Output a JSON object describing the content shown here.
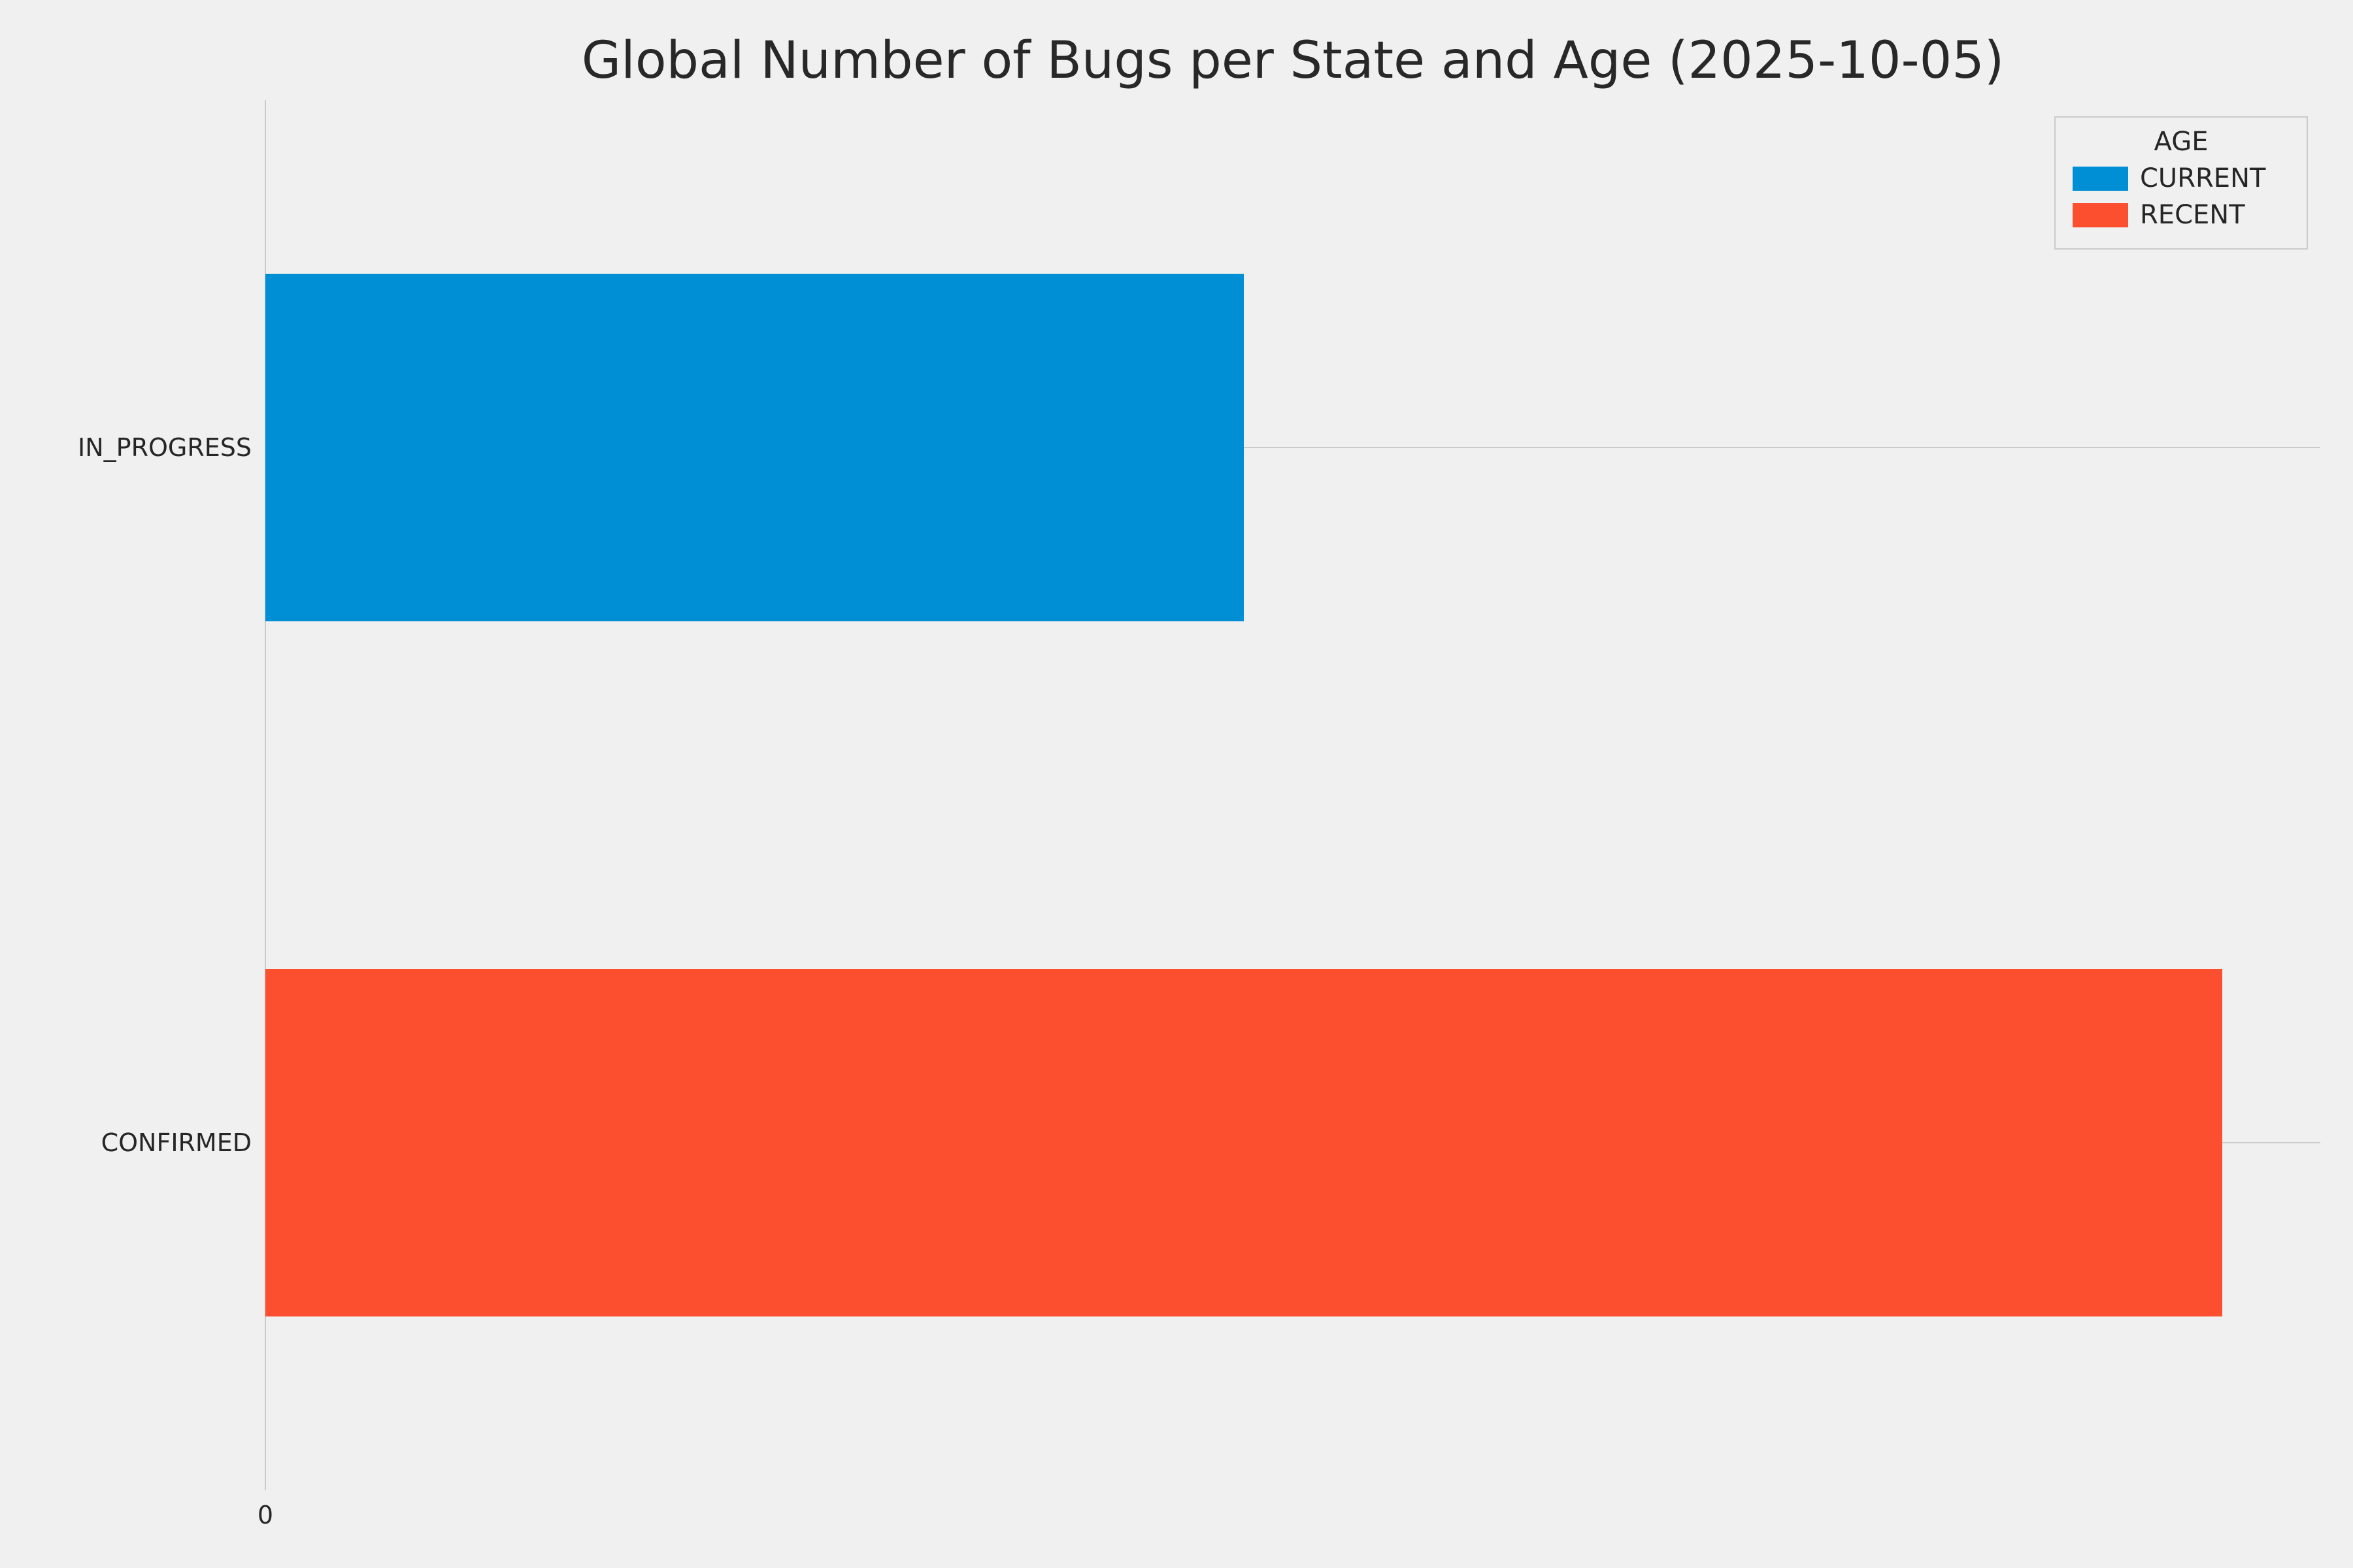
{
  "chart_data": {
    "type": "bar",
    "orientation": "horizontal",
    "title": "Global Number of Bugs per State and Age (2025-10-05)",
    "categories": [
      "IN_PROGRESS",
      "CONFIRMED"
    ],
    "bars": [
      {
        "category": "IN_PROGRESS",
        "age": "CURRENT",
        "value": 1,
        "color": "#008fd5"
      },
      {
        "category": "CONFIRMED",
        "age": "RECENT",
        "value": 2,
        "color": "#fc4f30"
      }
    ],
    "xlim": [
      0,
      2.1
    ],
    "xticks": [
      0
    ],
    "bar_thickness": 0.5,
    "grid": true,
    "gridline_color": "#cbcbcb",
    "background_color": "#f0f0f0",
    "legend": {
      "title": "AGE",
      "position": "upper right",
      "entries": [
        {
          "label": "CURRENT",
          "color": "#008fd5"
        },
        {
          "label": "RECENT",
          "color": "#fc4f30"
        }
      ]
    }
  }
}
